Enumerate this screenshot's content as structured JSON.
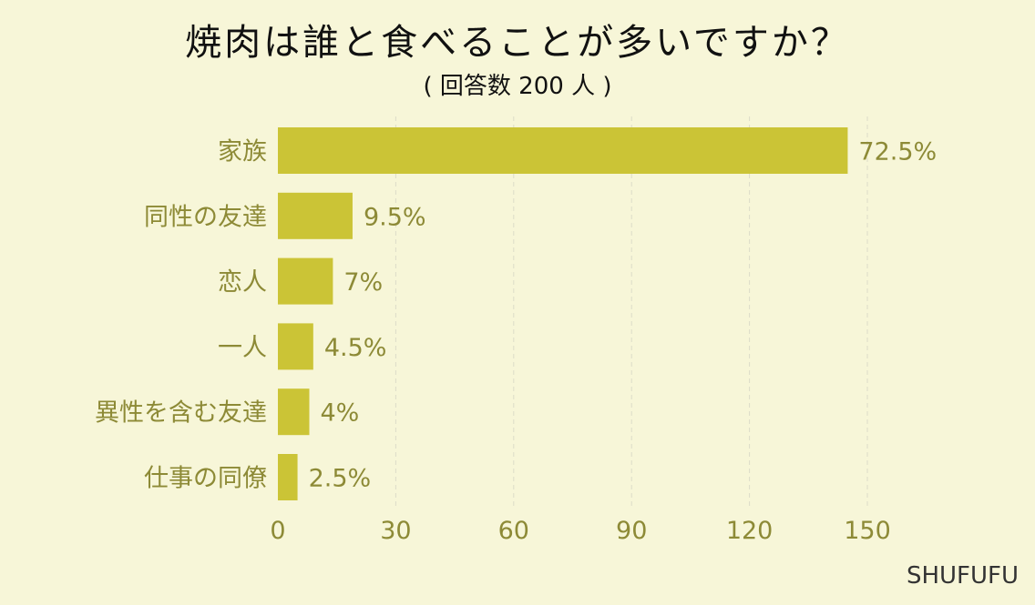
{
  "title": "焼肉は誰と食べることが多いですか？",
  "subtitle": "( 回答数 200 人 )",
  "brand": "SHUFUFU",
  "chart_data": {
    "type": "bar",
    "orientation": "horizontal",
    "categories": [
      "家族",
      "同性の友達",
      "恋人",
      "一人",
      "異性を含む友達",
      "仕事の同僚"
    ],
    "values": [
      145,
      19,
      14,
      9,
      8,
      5
    ],
    "data_labels": [
      "72.5%",
      "9.5%",
      "7%",
      "4.5%",
      "4%",
      "2.5%"
    ],
    "x_ticks": [
      0,
      30,
      60,
      90,
      120,
      150
    ],
    "xlim": [
      0,
      150
    ],
    "grid": "vertical-dashed",
    "colors": {
      "bar": "#cbc436",
      "text": "#8d8a36",
      "grid": "#dcdcc8",
      "background": "#f7f6d8"
    }
  }
}
